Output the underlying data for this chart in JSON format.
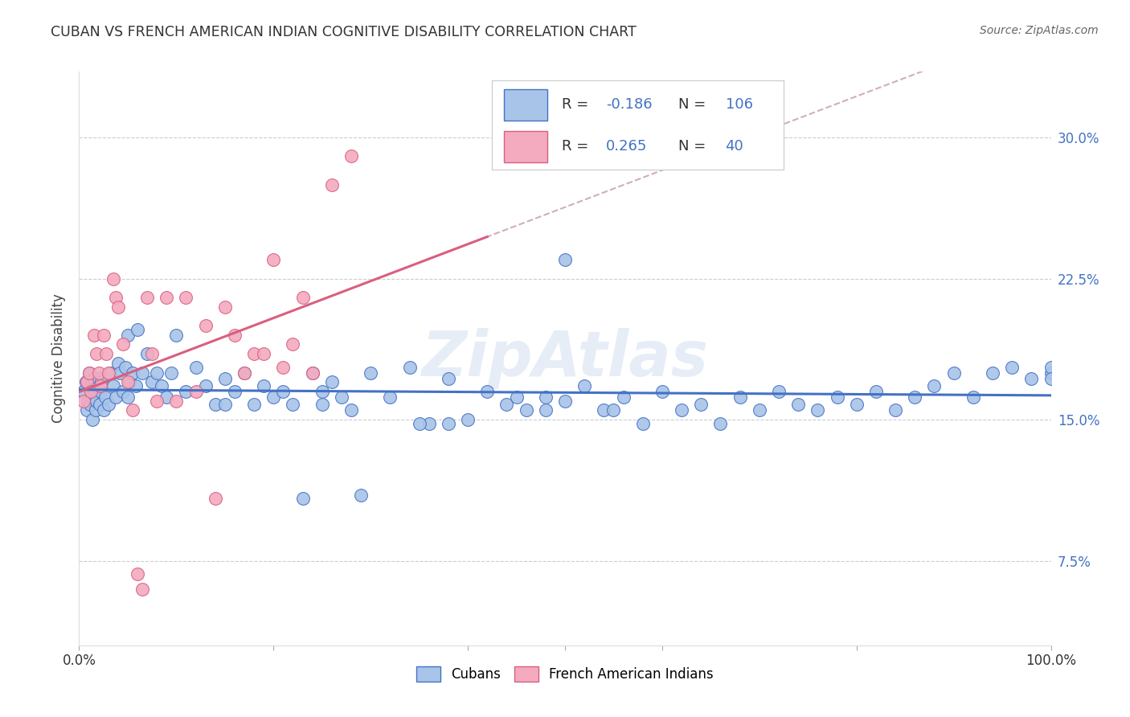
{
  "title": "CUBAN VS FRENCH AMERICAN INDIAN COGNITIVE DISABILITY CORRELATION CHART",
  "source": "Source: ZipAtlas.com",
  "ylabel": "Cognitive Disability",
  "yticks": [
    0.075,
    0.15,
    0.225,
    0.3
  ],
  "ytick_labels": [
    "7.5%",
    "15.0%",
    "22.5%",
    "30.0%"
  ],
  "xlim": [
    0.0,
    1.0
  ],
  "ylim": [
    0.03,
    0.335
  ],
  "blue_color": "#A8C4E8",
  "pink_color": "#F4AABF",
  "line_blue": "#4472C4",
  "line_pink": "#D95F7F",
  "line_gray_dashed": "#C8A0B0",
  "background": "#FFFFFF",
  "cubans_x": [
    0.005,
    0.007,
    0.008,
    0.009,
    0.01,
    0.011,
    0.012,
    0.013,
    0.014,
    0.015,
    0.016,
    0.017,
    0.018,
    0.019,
    0.02,
    0.021,
    0.022,
    0.023,
    0.025,
    0.027,
    0.03,
    0.032,
    0.035,
    0.038,
    0.04,
    0.042,
    0.045,
    0.048,
    0.05,
    0.052,
    0.055,
    0.058,
    0.06,
    0.065,
    0.07,
    0.075,
    0.08,
    0.085,
    0.09,
    0.095,
    0.1,
    0.11,
    0.12,
    0.13,
    0.14,
    0.15,
    0.16,
    0.17,
    0.18,
    0.19,
    0.2,
    0.21,
    0.22,
    0.23,
    0.24,
    0.25,
    0.26,
    0.27,
    0.28,
    0.29,
    0.3,
    0.32,
    0.34,
    0.36,
    0.38,
    0.4,
    0.42,
    0.44,
    0.46,
    0.48,
    0.5,
    0.52,
    0.54,
    0.56,
    0.58,
    0.6,
    0.62,
    0.64,
    0.66,
    0.68,
    0.7,
    0.72,
    0.74,
    0.76,
    0.78,
    0.8,
    0.82,
    0.84,
    0.86,
    0.88,
    0.9,
    0.92,
    0.94,
    0.96,
    0.98,
    1.0,
    1.0,
    1.0,
    0.5,
    0.55,
    0.45,
    0.35,
    0.25,
    0.15,
    0.05,
    0.48,
    0.38
  ],
  "cubans_y": [
    0.165,
    0.17,
    0.155,
    0.16,
    0.175,
    0.158,
    0.168,
    0.162,
    0.15,
    0.172,
    0.165,
    0.155,
    0.16,
    0.168,
    0.172,
    0.158,
    0.165,
    0.17,
    0.155,
    0.162,
    0.158,
    0.175,
    0.168,
    0.162,
    0.18,
    0.175,
    0.165,
    0.178,
    0.195,
    0.17,
    0.175,
    0.168,
    0.198,
    0.175,
    0.185,
    0.17,
    0.175,
    0.168,
    0.162,
    0.175,
    0.195,
    0.165,
    0.178,
    0.168,
    0.158,
    0.172,
    0.165,
    0.175,
    0.158,
    0.168,
    0.162,
    0.165,
    0.158,
    0.108,
    0.175,
    0.158,
    0.17,
    0.162,
    0.155,
    0.11,
    0.175,
    0.162,
    0.178,
    0.148,
    0.172,
    0.15,
    0.165,
    0.158,
    0.155,
    0.162,
    0.16,
    0.168,
    0.155,
    0.162,
    0.148,
    0.165,
    0.155,
    0.158,
    0.148,
    0.162,
    0.155,
    0.165,
    0.158,
    0.155,
    0.162,
    0.158,
    0.165,
    0.155,
    0.162,
    0.168,
    0.175,
    0.162,
    0.175,
    0.178,
    0.172,
    0.175,
    0.178,
    0.172,
    0.235,
    0.155,
    0.162,
    0.148,
    0.165,
    0.158,
    0.162,
    0.155,
    0.148
  ],
  "french_x": [
    0.005,
    0.008,
    0.01,
    0.012,
    0.015,
    0.018,
    0.02,
    0.022,
    0.025,
    0.028,
    0.03,
    0.035,
    0.038,
    0.04,
    0.045,
    0.05,
    0.055,
    0.06,
    0.065,
    0.07,
    0.075,
    0.08,
    0.09,
    0.1,
    0.11,
    0.12,
    0.13,
    0.14,
    0.15,
    0.16,
    0.17,
    0.18,
    0.19,
    0.2,
    0.21,
    0.22,
    0.23,
    0.24,
    0.26,
    0.28
  ],
  "french_y": [
    0.16,
    0.17,
    0.175,
    0.165,
    0.195,
    0.185,
    0.175,
    0.168,
    0.195,
    0.185,
    0.175,
    0.225,
    0.215,
    0.21,
    0.19,
    0.17,
    0.155,
    0.068,
    0.06,
    0.215,
    0.185,
    0.16,
    0.215,
    0.16,
    0.215,
    0.165,
    0.2,
    0.108,
    0.21,
    0.195,
    0.175,
    0.185,
    0.185,
    0.235,
    0.178,
    0.19,
    0.215,
    0.175,
    0.275,
    0.29
  ]
}
